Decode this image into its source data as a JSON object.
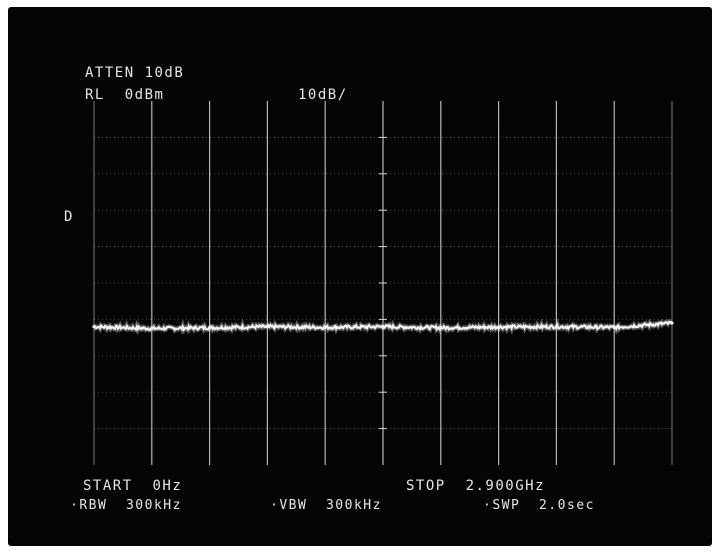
{
  "screen": {
    "atten": "ATTEN 10dB",
    "ref_level": "RL  0dBm",
    "scale": "10dB/",
    "marker": "D",
    "start": "START  0Hz",
    "stop": "STOP  2.900GHz",
    "rbw": "·RBW  300kHz",
    "vbw": "·VBW  300kHz",
    "swp": "·SWP  2.0sec"
  },
  "colors": {
    "background": "#050505",
    "graticule": "#d8d8d8",
    "trace": "#f2f2f2",
    "text": "#e6e6e6"
  },
  "chart_data": {
    "type": "line",
    "title": "",
    "xlabel": "",
    "ylabel": "",
    "x_unit": "GHz",
    "y_unit": "dBm",
    "xlim": [
      0,
      2.9
    ],
    "ylim": [
      -100,
      0
    ],
    "grid": true,
    "series": [
      {
        "x": [
          0,
          0.29,
          0.58,
          0.87,
          1.16,
          1.45,
          1.74,
          2.03,
          2.32,
          2.61,
          2.9
        ],
        "y": [
          -62,
          -62.5,
          -62.3,
          -62,
          -62.2,
          -62,
          -62.3,
          -62.1,
          -62,
          -62.2,
          -61
        ]
      }
    ]
  }
}
